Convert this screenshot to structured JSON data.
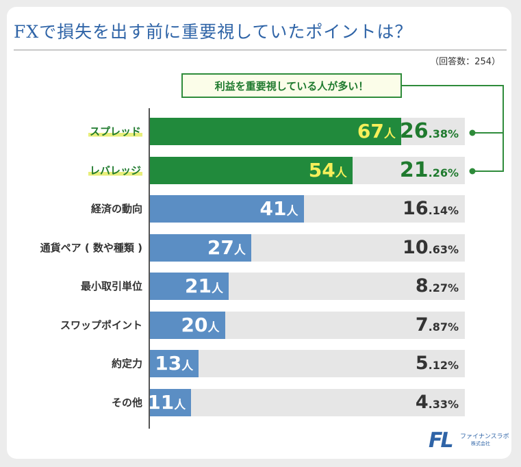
{
  "header": {
    "title": "FXで損失を出す前に重要視していたポイントは？",
    "respondents": "（回答数：254）",
    "callout": "利益を重要視している人が多い！"
  },
  "colors": {
    "highlight": "#218a3c",
    "normal": "#5b8ec4",
    "track": "#e6e6e6",
    "count_highlight": "#f6ef5a"
  },
  "chart_data": {
    "type": "bar",
    "orientation": "horizontal",
    "title": "FXで損失を出す前に重要視していたポイントは？",
    "categories": [
      "スプレッド",
      "レバレッジ",
      "経済の動向",
      "通貨ペア ( 数や種類 )",
      "最小取引単位",
      "スワップポイント",
      "約定力",
      "その他"
    ],
    "count_unit": "人",
    "values": [
      67,
      54,
      41,
      27,
      21,
      20,
      13,
      11
    ],
    "percent_int": [
      "26",
      "21",
      "16",
      "10",
      "8",
      "7",
      "5",
      "4"
    ],
    "percent_dec": [
      ".38%",
      ".26%",
      ".14%",
      ".63%",
      ".27%",
      ".87%",
      ".12%",
      ".33%"
    ],
    "highlighted": [
      true,
      true,
      false,
      false,
      false,
      false,
      false,
      false
    ],
    "xlim": [
      0,
      84
    ],
    "total": 254
  },
  "footer": {
    "logo_mark": "FL",
    "logo_name": "ファイナンスラボ",
    "logo_sub": "株式会社"
  }
}
